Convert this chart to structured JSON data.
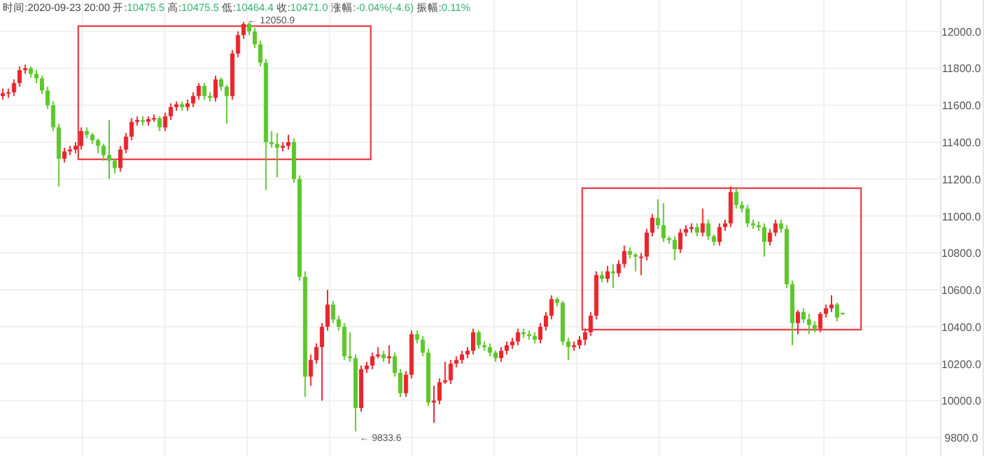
{
  "chart_data": {
    "type": "candlestick",
    "title": "时间:2020-09-23 20:00 开:10475.5 高:10475.5 低:10464.4 收:10471.0 涨幅:-0.04%(-4.6) 振幅:0.11%",
    "categories": [
      null,
      null,
      null,
      null,
      null,
      null,
      null,
      null,
      null,
      null,
      null,
      null,
      null,
      null,
      null,
      null,
      null,
      null,
      null,
      null,
      null,
      null,
      null,
      null,
      null,
      null,
      null,
      null,
      null,
      null,
      null,
      null,
      null,
      null,
      null,
      null,
      null,
      null,
      null,
      null,
      null,
      null,
      null,
      null,
      null,
      null,
      null,
      null,
      null,
      null,
      null,
      null,
      null,
      null,
      null,
      null,
      null,
      null,
      null,
      null,
      null,
      null,
      null,
      null,
      null,
      null,
      null,
      null,
      null,
      null,
      null,
      null,
      null,
      null,
      null,
      null,
      null,
      null,
      null,
      null,
      null,
      null,
      null,
      null,
      null,
      null,
      null,
      null,
      null,
      null,
      null,
      null,
      null,
      null,
      null,
      null,
      null,
      null,
      null,
      null,
      null,
      null,
      null,
      null,
      null,
      null,
      null,
      null,
      null,
      null,
      null,
      null,
      null,
      null,
      null,
      null,
      null,
      null,
      null,
      null,
      null,
      null,
      null,
      null,
      null,
      null,
      null,
      null,
      null,
      null,
      null,
      null,
      null,
      null,
      null,
      null,
      null,
      null,
      null,
      null,
      null,
      null,
      null,
      null,
      null,
      null,
      null,
      null,
      null,
      null,
      null,
      null,
      null,
      null,
      null,
      null,
      null,
      null,
      null,
      null,
      null,
      null,
      null,
      null,
      null,
      null,
      null,
      null
    ],
    "ohlc": [
      [
        11650,
        11690,
        11630,
        11665
      ],
      [
        11665,
        11690,
        11640,
        11670
      ],
      [
        11670,
        11740,
        11650,
        11720
      ],
      [
        11720,
        11810,
        11700,
        11790
      ],
      [
        11790,
        11820,
        11770,
        11800
      ],
      [
        11800,
        11810,
        11750,
        11770
      ],
      [
        11770,
        11790,
        11720,
        11745
      ],
      [
        11745,
        11760,
        11660,
        11680
      ],
      [
        11680,
        11700,
        11580,
        11600
      ],
      [
        11600,
        11620,
        11460,
        11480
      ],
      [
        11480,
        11500,
        11160,
        11310
      ],
      [
        11310,
        11370,
        11290,
        11350
      ],
      [
        11350,
        11380,
        11330,
        11360
      ],
      [
        11360,
        11400,
        11340,
        11380
      ],
      [
        11380,
        11480,
        11360,
        11460
      ],
      [
        11460,
        11480,
        11420,
        11440
      ],
      [
        11440,
        11450,
        11390,
        11410
      ],
      [
        11410,
        11420,
        11340,
        11380
      ],
      [
        11380,
        11390,
        11300,
        11330
      ],
      [
        11330,
        11520,
        11200,
        11300
      ],
      [
        11300,
        11310,
        11230,
        11260
      ],
      [
        11260,
        11380,
        11240,
        11360
      ],
      [
        11360,
        11450,
        11340,
        11430
      ],
      [
        11430,
        11530,
        11410,
        11510
      ],
      [
        11510,
        11540,
        11490,
        11520
      ],
      [
        11520,
        11540,
        11490,
        11510
      ],
      [
        11510,
        11540,
        11490,
        11525
      ],
      [
        11525,
        11550,
        11510,
        11530
      ],
      [
        11530,
        11540,
        11460,
        11480
      ],
      [
        11480,
        11560,
        11460,
        11540
      ],
      [
        11540,
        11610,
        11520,
        11590
      ],
      [
        11590,
        11620,
        11570,
        11605
      ],
      [
        11605,
        11620,
        11570,
        11590
      ],
      [
        11590,
        11630,
        11570,
        11610
      ],
      [
        11610,
        11670,
        11590,
        11650
      ],
      [
        11650,
        11720,
        11630,
        11705
      ],
      [
        11705,
        11720,
        11630,
        11650
      ],
      [
        11650,
        11670,
        11620,
        11640
      ],
      [
        11640,
        11760,
        11620,
        11740
      ],
      [
        11740,
        11750,
        11680,
        11700
      ],
      [
        11700,
        11710,
        11500,
        11650
      ],
      [
        11650,
        11900,
        11630,
        11880
      ],
      [
        11880,
        12000,
        11860,
        11980
      ],
      [
        11980,
        12050.9,
        11960,
        12040
      ],
      [
        12040,
        12050,
        11980,
        12000
      ],
      [
        12000,
        12020,
        11910,
        11930
      ],
      [
        11930,
        11950,
        11810,
        11830
      ],
      [
        11830,
        11850,
        11140,
        11400
      ],
      [
        11400,
        11460,
        11370,
        11390
      ],
      [
        11390,
        11450,
        11210,
        11370
      ],
      [
        11370,
        11400,
        11350,
        11380
      ],
      [
        11380,
        11440,
        11360,
        11400
      ],
      [
        11400,
        11420,
        11180,
        11200
      ],
      [
        11200,
        11220,
        10650,
        10670
      ],
      [
        10670,
        10700,
        10020,
        10130
      ],
      [
        10130,
        10250,
        10080,
        10220
      ],
      [
        10220,
        10310,
        10200,
        10290
      ],
      [
        10290,
        10420,
        10000,
        10400
      ],
      [
        10400,
        10600,
        10380,
        10520
      ],
      [
        10520,
        10540,
        10420,
        10440
      ],
      [
        10440,
        10460,
        10380,
        10400
      ],
      [
        10400,
        10420,
        10220,
        10240
      ],
      [
        10240,
        10370,
        10210,
        10230
      ],
      [
        10230,
        10250,
        9833.6,
        9960
      ],
      [
        9960,
        10190,
        9940,
        10170
      ],
      [
        10170,
        10210,
        10150,
        10190
      ],
      [
        10190,
        10260,
        10170,
        10240
      ],
      [
        10240,
        10290,
        10230,
        10250
      ],
      [
        10250,
        10270,
        10210,
        10230
      ],
      [
        10230,
        10300,
        10200,
        10240
      ],
      [
        10240,
        10260,
        10130,
        10150
      ],
      [
        10150,
        10170,
        10020,
        10040
      ],
      [
        10040,
        10160,
        10020,
        10140
      ],
      [
        10140,
        10380,
        10120,
        10360
      ],
      [
        10360,
        10380,
        10310,
        10330
      ],
      [
        10330,
        10350,
        10240,
        10260
      ],
      [
        10260,
        10280,
        9970,
        9990
      ],
      [
        9990,
        10080,
        9880,
        10000
      ],
      [
        10000,
        10120,
        9980,
        10100
      ],
      [
        10100,
        10210,
        10090,
        10110
      ],
      [
        10110,
        10220,
        10090,
        10200
      ],
      [
        10200,
        10240,
        10180,
        10220
      ],
      [
        10220,
        10270,
        10200,
        10250
      ],
      [
        10250,
        10290,
        10230,
        10270
      ],
      [
        10270,
        10390,
        10250,
        10370
      ],
      [
        10370,
        10380,
        10280,
        10300
      ],
      [
        10300,
        10320,
        10270,
        10290
      ],
      [
        10290,
        10310,
        10240,
        10260
      ],
      [
        10260,
        10270,
        10210,
        10230
      ],
      [
        10230,
        10290,
        10210,
        10270
      ],
      [
        10270,
        10320,
        10250,
        10300
      ],
      [
        10300,
        10340,
        10280,
        10320
      ],
      [
        10320,
        10390,
        10300,
        10370
      ],
      [
        10370,
        10390,
        10340,
        10360
      ],
      [
        10360,
        10380,
        10330,
        10350
      ],
      [
        10350,
        10370,
        10310,
        10330
      ],
      [
        10330,
        10420,
        10310,
        10400
      ],
      [
        10400,
        10480,
        10380,
        10460
      ],
      [
        10460,
        10570,
        10440,
        10550
      ],
      [
        10550,
        10560,
        10510,
        10530
      ],
      [
        10530,
        10540,
        10300,
        10320
      ],
      [
        10320,
        10340,
        10220,
        10290
      ],
      [
        10290,
        10320,
        10270,
        10300
      ],
      [
        10300,
        10350,
        10280,
        10330
      ],
      [
        10330,
        10390,
        10300,
        10370
      ],
      [
        10370,
        10480,
        10350,
        10460
      ],
      [
        10460,
        10700,
        10440,
        10680
      ],
      [
        10680,
        10700,
        10640,
        10660
      ],
      [
        10660,
        10730,
        10640,
        10700
      ],
      [
        10700,
        10740,
        10610,
        10690
      ],
      [
        10690,
        10760,
        10670,
        10740
      ],
      [
        10740,
        10840,
        10720,
        10810
      ],
      [
        10810,
        10830,
        10770,
        10790
      ],
      [
        10790,
        10800,
        10700,
        10780
      ],
      [
        10780,
        10800,
        10680,
        10780
      ],
      [
        10780,
        10930,
        10760,
        10910
      ],
      [
        10910,
        11010,
        10890,
        10990
      ],
      [
        10990,
        11090,
        10930,
        10950
      ],
      [
        10950,
        11070,
        10860,
        10880
      ],
      [
        10880,
        10890,
        10850,
        10870
      ],
      [
        10870,
        10890,
        10760,
        10820
      ],
      [
        10820,
        10930,
        10800,
        10910
      ],
      [
        10910,
        10950,
        10890,
        10930
      ],
      [
        10930,
        10960,
        10910,
        10940
      ],
      [
        10940,
        10960,
        10890,
        10910
      ],
      [
        10910,
        11040,
        10890,
        10960
      ],
      [
        10960,
        10980,
        10870,
        10890
      ],
      [
        10890,
        10900,
        10840,
        10860
      ],
      [
        10860,
        10960,
        10840,
        10940
      ],
      [
        10940,
        10980,
        10920,
        10960
      ],
      [
        10960,
        11160,
        10940,
        11130
      ],
      [
        11130,
        11150,
        11040,
        11060
      ],
      [
        11060,
        11080,
        11020,
        11040
      ],
      [
        11040,
        11060,
        10940,
        10960
      ],
      [
        10960,
        10980,
        10930,
        10950
      ],
      [
        10950,
        10970,
        10920,
        10940
      ],
      [
        10940,
        10960,
        10780,
        10860
      ],
      [
        10860,
        10930,
        10840,
        10910
      ],
      [
        10910,
        10980,
        10890,
        10960
      ],
      [
        10960,
        10980,
        10910,
        10930
      ],
      [
        10930,
        10950,
        10610,
        10630
      ],
      [
        10630,
        10650,
        10300,
        10420
      ],
      [
        10420,
        10490,
        10360,
        10480
      ],
      [
        10480,
        10500,
        10420,
        10440
      ],
      [
        10440,
        10470,
        10360,
        10410
      ],
      [
        10410,
        10430,
        10370,
        10390
      ],
      [
        10390,
        10480,
        10370,
        10470
      ],
      [
        10470,
        10520,
        10450,
        10500
      ],
      [
        10500,
        10570,
        10480,
        10520
      ],
      [
        10520,
        10530,
        10430,
        10450
      ],
      [
        10475.5,
        10475.5,
        10464.4,
        10471.0
      ],
      null,
      null,
      null,
      null,
      null,
      null,
      null,
      null,
      null,
      null,
      null,
      null,
      null,
      null,
      null,
      null,
      null
    ],
    "colors": [
      "#e8262d",
      "#e8262d",
      "#e8262d",
      "#e8262d",
      "#e8262d",
      "#5cc72a",
      "#5cc72a",
      "#5cc72a",
      "#5cc72a",
      "#5cc72a",
      "#5cc72a",
      "#e8262d",
      "#e8262d",
      "#e8262d",
      "#e8262d",
      "#5cc72a",
      "#5cc72a",
      "#5cc72a",
      "#5cc72a",
      "#5cc72a",
      "#5cc72a",
      "#e8262d",
      "#e8262d",
      "#e8262d",
      "#e8262d",
      "#5cc72a",
      "#e8262d",
      "#e8262d",
      "#5cc72a",
      "#e8262d",
      "#e8262d",
      "#e8262d",
      "#5cc72a",
      "#e8262d",
      "#e8262d",
      "#e8262d",
      "#5cc72a",
      "#5cc72a",
      "#e8262d",
      "#5cc72a",
      "#5cc72a",
      "#e8262d",
      "#e8262d",
      "#e8262d",
      "#5cc72a",
      "#5cc72a",
      "#5cc72a",
      "#5cc72a",
      "#5cc72a",
      "#5cc72a",
      "#e8262d",
      "#e8262d",
      "#5cc72a",
      "#5cc72a",
      "#5cc72a",
      "#e8262d",
      "#e8262d",
      "#e8262d",
      "#e8262d",
      "#5cc72a",
      "#5cc72a",
      "#5cc72a",
      "#5cc72a",
      "#5cc72a",
      "#e8262d",
      "#e8262d",
      "#e8262d",
      "#e8262d",
      "#5cc72a",
      "#e8262d",
      "#5cc72a",
      "#5cc72a",
      "#e8262d",
      "#e8262d",
      "#5cc72a",
      "#5cc72a",
      "#5cc72a",
      "#e8262d",
      "#e8262d",
      "#e8262d",
      "#e8262d",
      "#e8262d",
      "#e8262d",
      "#e8262d",
      "#e8262d",
      "#5cc72a",
      "#5cc72a",
      "#5cc72a",
      "#5cc72a",
      "#e8262d",
      "#e8262d",
      "#e8262d",
      "#e8262d",
      "#5cc72a",
      "#5cc72a",
      "#5cc72a",
      "#e8262d",
      "#e8262d",
      "#e8262d",
      "#5cc72a",
      "#5cc72a",
      "#5cc72a",
      "#e8262d",
      "#e8262d",
      "#e8262d",
      "#e8262d",
      "#e8262d",
      "#5cc72a",
      "#e8262d",
      "#5cc72a",
      "#e8262d",
      "#e8262d",
      "#5cc72a",
      "#5cc72a",
      "#e8262d",
      "#e8262d",
      "#e8262d",
      "#5cc72a",
      "#5cc72a",
      "#5cc72a",
      "#5cc72a",
      "#e8262d",
      "#e8262d",
      "#e8262d",
      "#5cc72a",
      "#e8262d",
      "#5cc72a",
      "#5cc72a",
      "#e8262d",
      "#e8262d",
      "#e8262d",
      "#5cc72a",
      "#5cc72a",
      "#5cc72a",
      "#5cc72a",
      "#5cc72a",
      "#5cc72a",
      "#e8262d",
      "#e8262d",
      "#5cc72a",
      "#5cc72a",
      "#5cc72a",
      "#e8262d",
      "#5cc72a",
      "#5cc72a",
      "#5cc72a",
      "#e8262d",
      "#e8262d",
      "#e8262d",
      "#5cc72a",
      "#5cc72a",
      null,
      null,
      null,
      null,
      null,
      null,
      null,
      null,
      null,
      null,
      null,
      null,
      null,
      null,
      null,
      null,
      null
    ],
    "ylim": [
      9700,
      12170
    ],
    "yticks": [
      {
        "value": 9800,
        "label": "9800.0"
      },
      {
        "value": 10000,
        "label": "10000.0"
      },
      {
        "value": 10200,
        "label": "10200.0"
      },
      {
        "value": 10400,
        "label": "10400.0"
      },
      {
        "value": 10600,
        "label": "10600.0"
      },
      {
        "value": 10800,
        "label": "10800.0"
      },
      {
        "value": 11000,
        "label": "11000.0"
      },
      {
        "value": 11200,
        "label": "11200.0"
      },
      {
        "value": 11400,
        "label": "11400.0"
      },
      {
        "value": 11600,
        "label": "11600.0"
      },
      {
        "value": 11800,
        "label": "11800.0"
      },
      {
        "value": 12000,
        "label": "12000.0"
      }
    ],
    "grid": true,
    "annotations": [
      "← 12050.9",
      "← 9833.6"
    ]
  }
}
